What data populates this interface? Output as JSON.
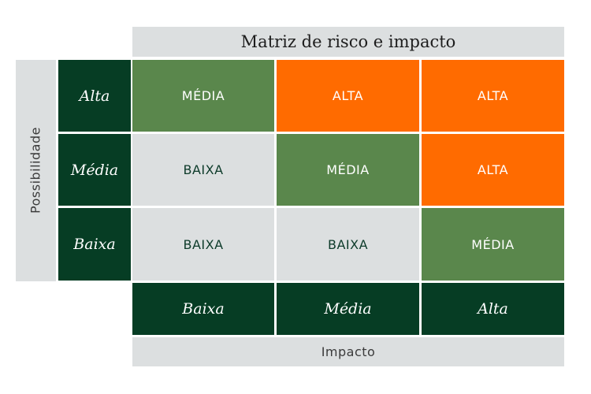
{
  "title": "Matriz de risco e impacto",
  "y_axis_label": "Possibilidade",
  "x_axis_label": "Impacto",
  "row_labels": [
    "Alta",
    "Média",
    "Baixa"
  ],
  "col_labels": [
    "Baixa",
    "Média",
    "Alta"
  ],
  "cells": [
    [
      "MÉDIA",
      "ALTA",
      "ALTA"
    ],
    [
      "BAIXA",
      "MÉDIA",
      "ALTA"
    ],
    [
      "BAIXA",
      "BAIXA",
      "MÉDIA"
    ]
  ],
  "colors": {
    "high": "#ff6b00",
    "medium": "#5a874c",
    "low": "#dcdfe0",
    "header": "#063d24",
    "axis": "#dcdfe0"
  }
}
